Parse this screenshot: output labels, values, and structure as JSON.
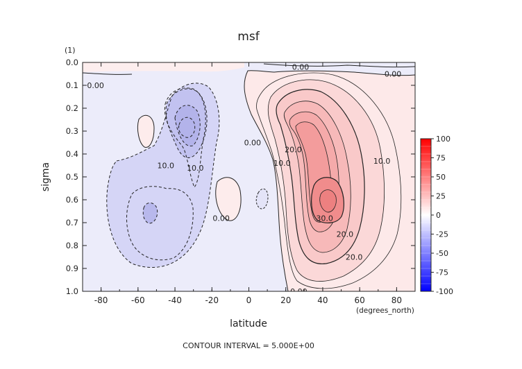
{
  "chart_data": {
    "type": "contour",
    "title": "msf",
    "units_label": "(1)",
    "xlabel": "latitude",
    "ylabel": "sigma",
    "x_units": "(degrees_north)",
    "xlim": [
      -90,
      90
    ],
    "ylim": [
      1.0,
      0.0
    ],
    "x_ticks": [
      -80,
      -60,
      -40,
      -20,
      0,
      20,
      40,
      60,
      80
    ],
    "x_tick_labels": [
      "-80",
      "-60",
      "-40",
      "-20",
      "0",
      "20",
      "40",
      "60",
      "80"
    ],
    "y_ticks": [
      0.0,
      0.1,
      0.2,
      0.3,
      0.4,
      0.5,
      0.6,
      0.7,
      0.8,
      0.9,
      1.0
    ],
    "y_tick_labels": [
      "0.0",
      "0.1",
      "0.2",
      "0.3",
      "0.4",
      "0.5",
      "0.6",
      "0.7",
      "0.8",
      "0.9",
      "1.0"
    ],
    "contour_interval_text": "CONTOUR INTERVAL = 5.000E+00",
    "contour_interval": 5,
    "colorbar": {
      "levels": [
        100,
        75,
        50,
        25,
        0,
        -25,
        -50,
        -75,
        -100
      ],
      "labels": [
        "100",
        "75",
        "50",
        "25",
        "0",
        "-25",
        "-50",
        "-75",
        "-100"
      ],
      "max_color": "#ff0000",
      "zero_color": "#ffffff",
      "min_color": "#0000ff"
    },
    "contour_labels": [
      {
        "text": "0.00",
        "x": 28,
        "y": 0.02
      },
      {
        "text": "0.00",
        "x": 78,
        "y": 0.05
      },
      {
        "text": "0.00",
        "x": -83,
        "y": 0.1
      },
      {
        "text": "0.00",
        "x": 2,
        "y": 0.35
      },
      {
        "text": "0.00",
        "x": -15,
        "y": 0.68
      },
      {
        "text": "0.00",
        "x": 27,
        "y": 1.0
      },
      {
        "text": "10.0",
        "x": -45,
        "y": 0.45
      },
      {
        "text": "10.0",
        "x": -29,
        "y": 0.46
      },
      {
        "text": "20.0",
        "x": 24,
        "y": 0.38
      },
      {
        "text": "10.0",
        "x": 18,
        "y": 0.44
      },
      {
        "text": "10.0",
        "x": 72,
        "y": 0.43
      },
      {
        "text": "30.0",
        "x": 41,
        "y": 0.68
      },
      {
        "text": "20.0",
        "x": 52,
        "y": 0.75
      },
      {
        "text": "20.0",
        "x": 57,
        "y": 0.85
      }
    ]
  }
}
